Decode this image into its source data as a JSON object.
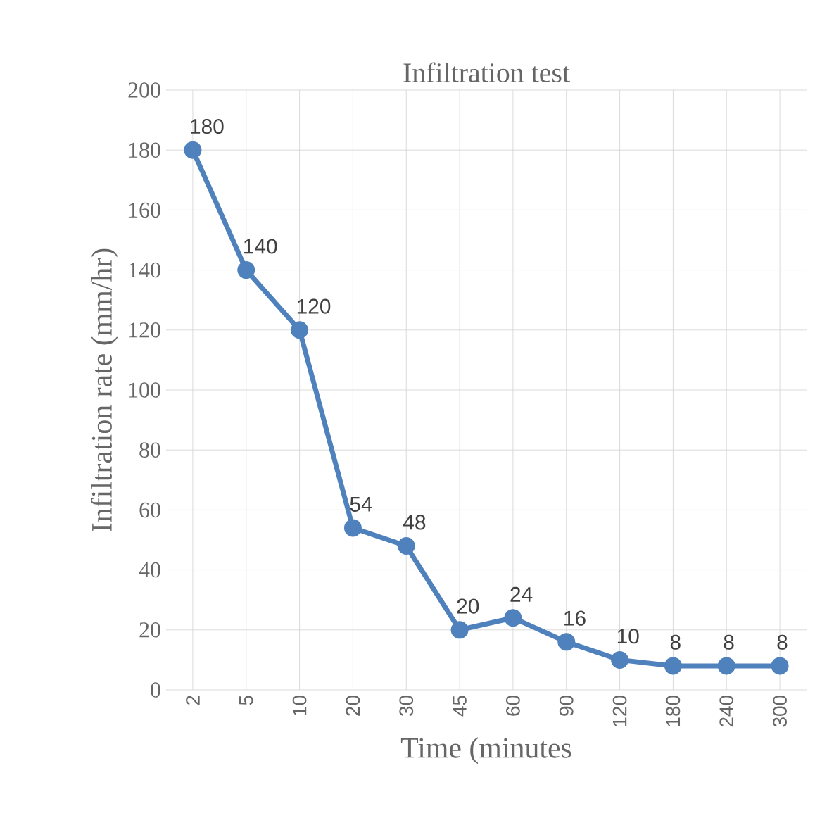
{
  "chart_data": {
    "type": "line",
    "title": "Infiltration test",
    "xlabel": "Time (minutes",
    "ylabel": "Infiltration rate (mm/hr)",
    "categories": [
      "2",
      "5",
      "10",
      "20",
      "30",
      "45",
      "60",
      "90",
      "120",
      "180",
      "240",
      "300"
    ],
    "series": [
      {
        "color": "#4f81bd",
        "values": [
          180,
          140,
          120,
          54,
          48,
          20,
          24,
          16,
          10,
          8,
          8,
          8
        ]
      }
    ],
    "ylim": [
      0,
      200
    ],
    "yticks": [
      0,
      20,
      40,
      60,
      80,
      100,
      120,
      140,
      160,
      180,
      200
    ],
    "grid": true,
    "marker": "circle",
    "line_style": "solid",
    "data_labels": true
  }
}
